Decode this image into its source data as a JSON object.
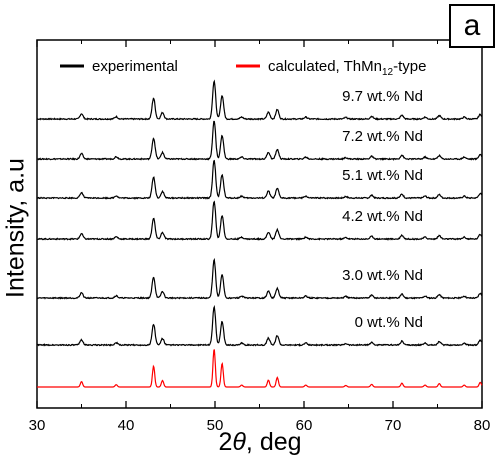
{
  "panel_label": "a",
  "chart_data": {
    "type": "line",
    "xlabel_prefix": "2",
    "xlabel_symbol": "θ",
    "xlabel_suffix": ", deg",
    "ylabel": "Intensity, a.u",
    "xlim": [
      30,
      80
    ],
    "x_ticks": [
      30,
      40,
      50,
      60,
      70,
      80
    ],
    "y_ticks_shown": false,
    "legend": {
      "placement": "top",
      "entries": [
        {
          "label": "experimental",
          "color": "#000000"
        },
        {
          "label_parts": [
            "calculated, ThMn",
            "12",
            "-type"
          ],
          "color": "#ff0000"
        }
      ]
    },
    "series": [
      {
        "name": "9.7 wt.% Nd",
        "color": "#000000"
      },
      {
        "name": "7.2 wt.% Nd",
        "color": "#000000"
      },
      {
        "name": "5.1 wt.% Nd",
        "color": "#000000"
      },
      {
        "name": "4.2 wt.% Nd",
        "color": "#000000"
      },
      {
        "name": "3.0 wt.% Nd",
        "color": "#000000"
      },
      {
        "name": "0 wt.% Nd",
        "color": "#000000"
      },
      {
        "color": "#ff0000"
      }
    ],
    "peaks": [
      {
        "x": 35.0,
        "h": 0.14
      },
      {
        "x": 38.9,
        "h": 0.06
      },
      {
        "x": 43.1,
        "h": 0.55
      },
      {
        "x": 44.1,
        "h": 0.17
      },
      {
        "x": 49.9,
        "h": 1.0
      },
      {
        "x": 50.8,
        "h": 0.62
      },
      {
        "x": 53.0,
        "h": 0.05
      },
      {
        "x": 56.0,
        "h": 0.18
      },
      {
        "x": 57.0,
        "h": 0.25
      },
      {
        "x": 60.2,
        "h": 0.05
      },
      {
        "x": 64.7,
        "h": 0.04
      },
      {
        "x": 67.6,
        "h": 0.07
      },
      {
        "x": 71.0,
        "h": 0.1
      },
      {
        "x": 73.6,
        "h": 0.05
      },
      {
        "x": 75.2,
        "h": 0.09
      },
      {
        "x": 78.0,
        "h": 0.05
      },
      {
        "x": 79.8,
        "h": 0.12
      }
    ]
  }
}
